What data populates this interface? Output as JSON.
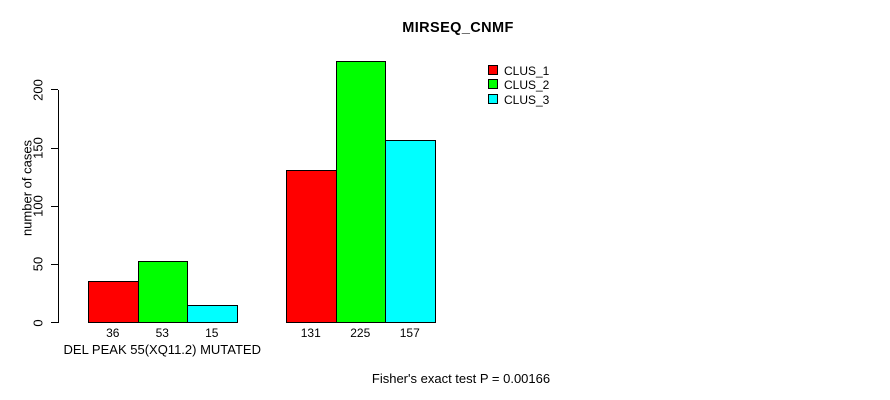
{
  "chart_data": {
    "type": "bar",
    "title": "MIRSEQ_CNMF",
    "ylabel": "number of cases",
    "xlabel": "",
    "ylim": [
      0,
      232
    ],
    "yticks": [
      0,
      50,
      100,
      150,
      200
    ],
    "grid": false,
    "legend_position": "inside-top-center",
    "categories": [
      "DEL PEAK 55(XQ11.2) MUTATED",
      ""
    ],
    "series": [
      {
        "name": "CLUS_1",
        "color": "#FF0000",
        "values": [
          36,
          131
        ]
      },
      {
        "name": "CLUS_2",
        "color": "#00FF00",
        "values": [
          53,
          225
        ]
      },
      {
        "name": "CLUS_3",
        "color": "#00FFFF",
        "values": [
          15,
          157
        ]
      }
    ],
    "bar_value_labels": [
      [
        36,
        53,
        15
      ],
      [
        131,
        225,
        157
      ]
    ],
    "annotation": "Fisher's exact test P = 0.00166"
  }
}
